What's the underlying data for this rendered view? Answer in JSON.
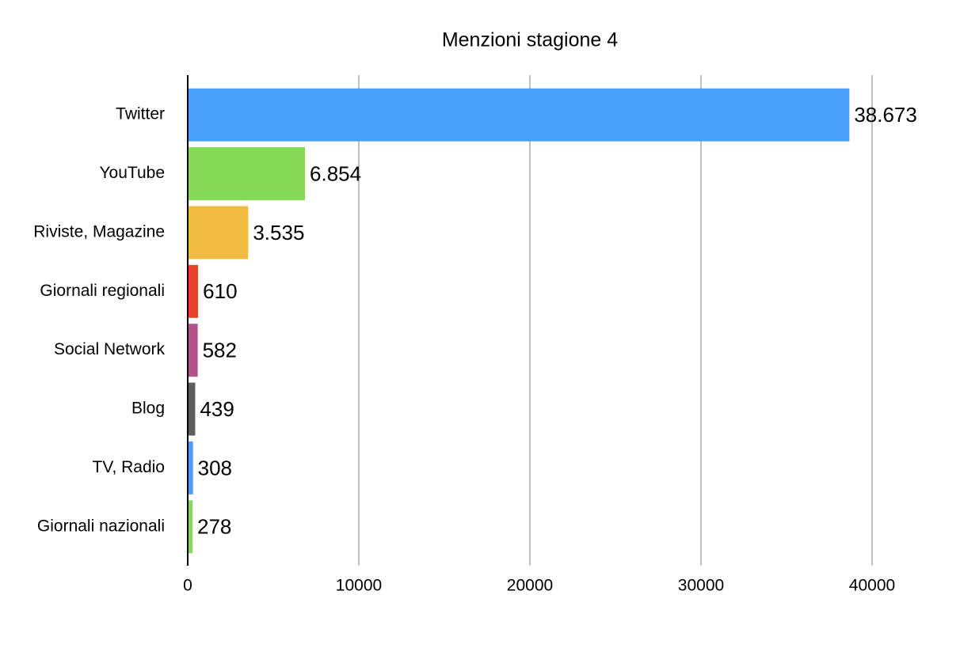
{
  "chart_data": {
    "type": "bar",
    "orientation": "horizontal",
    "title": "Menzioni stagione 4",
    "categories": [
      "Twitter",
      "YouTube",
      "Riviste, Magazine",
      "Giornali regionali",
      "Social Network",
      "Blog",
      "TV, Radio",
      "Giornali nazionali"
    ],
    "values": [
      38673,
      6854,
      3535,
      610,
      582,
      439,
      308,
      278
    ],
    "value_labels": [
      "38.673",
      "6.854",
      "3.535",
      "610",
      "582",
      "439",
      "308",
      "278"
    ],
    "colors": [
      "#4a9ffa",
      "#84d957",
      "#f0bb40",
      "#e9432b",
      "#b2528a",
      "#5e5e5e",
      "#4a9ffa",
      "#84d957"
    ],
    "xlim": [
      0,
      40000
    ],
    "xticks": [
      0,
      10000,
      20000,
      30000,
      40000
    ],
    "grid": true
  }
}
